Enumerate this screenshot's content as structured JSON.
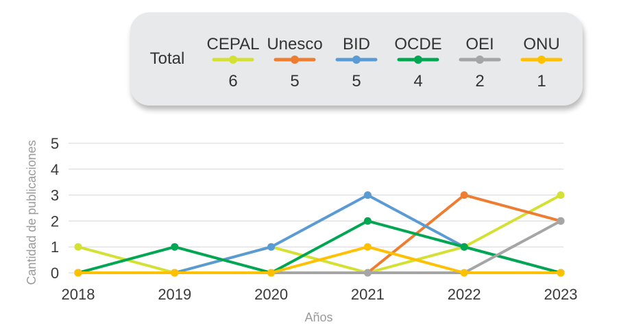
{
  "chart_data": {
    "type": "line",
    "title": "",
    "xlabel": "Años",
    "ylabel": "Cantidad de publicaciones",
    "x": [
      "2018",
      "2019",
      "2020",
      "2021",
      "2022",
      "2023"
    ],
    "ylim": [
      0,
      5
    ],
    "yticks": [
      "0",
      "1",
      "2",
      "3",
      "4",
      "5"
    ],
    "grid": true,
    "legend": {
      "placement": "top",
      "label": "Total"
    },
    "series": [
      {
        "name": "CEPAL",
        "total": "6",
        "color": "#d4e034",
        "values": [
          1,
          0,
          1,
          0,
          1,
          3
        ]
      },
      {
        "name": "Unesco",
        "total": "5",
        "color": "#ed7d31",
        "values": [
          0,
          0,
          0,
          0,
          3,
          2
        ]
      },
      {
        "name": "BID",
        "total": "5",
        "color": "#5b9bd5",
        "values": [
          0,
          0,
          1,
          3,
          1,
          0
        ]
      },
      {
        "name": "OCDE",
        "total": "4",
        "color": "#00a651",
        "values": [
          0,
          1,
          0,
          2,
          1,
          0
        ]
      },
      {
        "name": "OEI",
        "total": "2",
        "color": "#a5a5a5",
        "values": [
          0,
          0,
          0,
          0,
          0,
          2
        ]
      },
      {
        "name": "ONU",
        "total": "1",
        "color": "#ffc000",
        "values": [
          0,
          0,
          0,
          1,
          0,
          0
        ]
      }
    ]
  }
}
